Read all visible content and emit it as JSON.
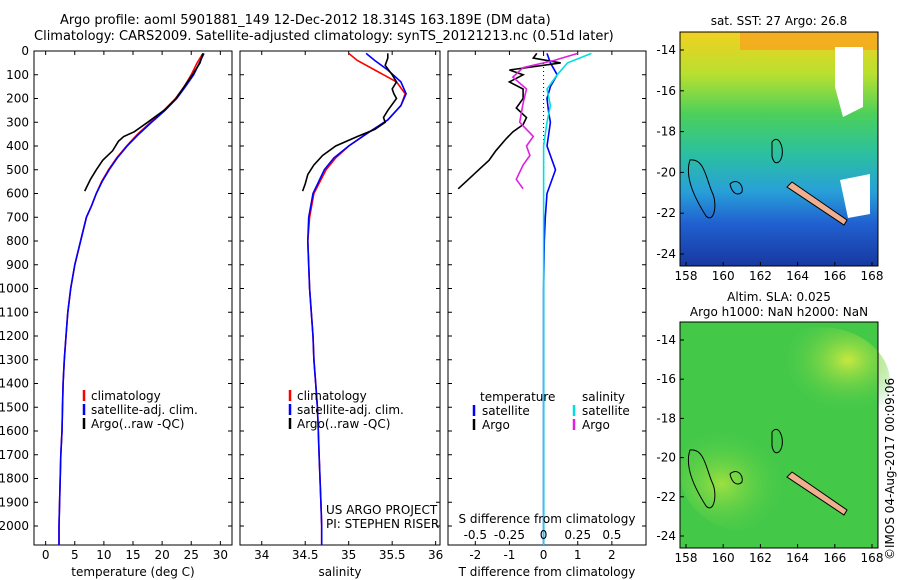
{
  "title_line1": "Argo profile: aoml 5901881_149 12-Dec-2012 18.314S 163.189E (DM data)",
  "title_line2": "Climatology: CARS2009. Satellite-adjusted climatology: synTS_20121213.nc (0.51d later)",
  "credit": "©IMOS 04-Aug-2017 00:09:06",
  "colors": {
    "climatology": "#ff0000",
    "satellite": "#0000ff",
    "argo": "#000000",
    "s_satellite": "#00e0e0",
    "s_argo": "#e020e0"
  },
  "chart_data": [
    {
      "type": "line",
      "xlabel": "temperature (deg C)",
      "xticks": [
        0,
        5,
        10,
        15,
        20,
        25,
        30
      ],
      "xlim": [
        -2,
        32
      ],
      "ylim": [
        0,
        2080
      ],
      "yticks": [
        0,
        100,
        200,
        300,
        400,
        500,
        600,
        700,
        800,
        900,
        1000,
        1100,
        1200,
        1300,
        1400,
        1500,
        1600,
        1700,
        1800,
        1900,
        2000
      ],
      "legend": [
        "climatology",
        "satellite-adj. clim.",
        "Argo(..raw -QC)"
      ],
      "series": [
        {
          "name": "climatology",
          "color": "climatology",
          "points": [
            [
              27,
              10
            ],
            [
              26,
              50
            ],
            [
              25,
              100
            ],
            [
              23.8,
              150
            ],
            [
              22.3,
              200
            ],
            [
              20.3,
              250
            ],
            [
              18,
              300
            ],
            [
              15.8,
              350
            ],
            [
              13.9,
              400
            ],
            [
              12.2,
              450
            ],
            [
              10.8,
              500
            ],
            [
              9.6,
              550
            ],
            [
              8.7,
              600
            ],
            [
              7.9,
              650
            ],
            [
              7,
              700
            ],
            [
              6,
              800
            ],
            [
              5,
              900
            ],
            [
              4.3,
              1000
            ],
            [
              3.8,
              1100
            ],
            [
              3.5,
              1200
            ],
            [
              3.2,
              1300
            ],
            [
              3,
              1400
            ],
            [
              2.9,
              1500
            ],
            [
              2.8,
              1600
            ],
            [
              2.6,
              1700
            ],
            [
              2.5,
              1800
            ],
            [
              2.4,
              1900
            ],
            [
              2.3,
              2000
            ],
            [
              2.3,
              2080
            ]
          ]
        },
        {
          "name": "satellite-adj. clim.",
          "color": "satellite",
          "points": [
            [
              27.2,
              10
            ],
            [
              26.4,
              50
            ],
            [
              25.4,
              100
            ],
            [
              24,
              150
            ],
            [
              22.5,
              200
            ],
            [
              20.5,
              250
            ],
            [
              18.2,
              300
            ],
            [
              16,
              350
            ],
            [
              14,
              400
            ],
            [
              12.3,
              450
            ],
            [
              10.9,
              500
            ],
            [
              9.7,
              550
            ],
            [
              8.7,
              600
            ],
            [
              7.9,
              650
            ],
            [
              7,
              700
            ],
            [
              6,
              800
            ],
            [
              5,
              900
            ],
            [
              4.3,
              1000
            ],
            [
              3.8,
              1100
            ],
            [
              3.5,
              1200
            ],
            [
              3.2,
              1300
            ],
            [
              3,
              1400
            ],
            [
              2.9,
              1500
            ],
            [
              2.8,
              1600
            ],
            [
              2.6,
              1700
            ],
            [
              2.5,
              1800
            ],
            [
              2.4,
              1900
            ],
            [
              2.3,
              2000
            ],
            [
              2.3,
              2080
            ]
          ]
        },
        {
          "name": "Argo(..raw -QC)",
          "color": "argo",
          "points": [
            [
              27,
              10
            ],
            [
              26.5,
              50
            ],
            [
              25.2,
              100
            ],
            [
              23.8,
              150
            ],
            [
              22.4,
              200
            ],
            [
              20.3,
              250
            ],
            [
              17.5,
              300
            ],
            [
              15.2,
              340
            ],
            [
              13.4,
              360
            ],
            [
              12.5,
              380
            ],
            [
              11.5,
              420
            ],
            [
              9.8,
              460
            ],
            [
              8.7,
              500
            ],
            [
              7.7,
              540
            ],
            [
              7.1,
              570
            ],
            [
              6.7,
              590
            ]
          ]
        }
      ]
    },
    {
      "type": "line",
      "xlabel": "salinity",
      "xticks": [
        34,
        34.5,
        35,
        35.5,
        36
      ],
      "xlim": [
        33.75,
        36.05
      ],
      "ylim": [
        0,
        2080
      ],
      "legend": [
        "climatology",
        "satellite-adj. clim.",
        "Argo(..raw -QC)"
      ],
      "annotation": [
        "US ARGO PROJECT",
        "PI: STEPHEN RISER"
      ],
      "series": [
        {
          "name": "climatology",
          "color": "climatology",
          "points": [
            [
              35,
              10
            ],
            [
              35.1,
              40
            ],
            [
              35.3,
              80
            ],
            [
              35.55,
              130
            ],
            [
              35.65,
              180
            ],
            [
              35.6,
              230
            ],
            [
              35.45,
              290
            ],
            [
              35.2,
              350
            ],
            [
              35,
              400
            ],
            [
              34.85,
              450
            ],
            [
              34.74,
              500
            ],
            [
              34.6,
              600
            ],
            [
              34.55,
              700
            ],
            [
              34.53,
              800
            ],
            [
              34.54,
              900
            ],
            [
              34.55,
              1000
            ],
            [
              34.57,
              1100
            ],
            [
              34.59,
              1200
            ],
            [
              34.6,
              1300
            ],
            [
              34.62,
              1400
            ],
            [
              34.64,
              1500
            ],
            [
              34.65,
              1600
            ],
            [
              34.66,
              1700
            ],
            [
              34.67,
              1800
            ],
            [
              34.68,
              1900
            ],
            [
              34.69,
              2000
            ],
            [
              34.69,
              2080
            ]
          ]
        },
        {
          "name": "satellite-adj. clim.",
          "color": "satellite",
          "points": [
            [
              35.2,
              10
            ],
            [
              35.3,
              40
            ],
            [
              35.45,
              80
            ],
            [
              35.6,
              130
            ],
            [
              35.66,
              180
            ],
            [
              35.6,
              230
            ],
            [
              35.45,
              290
            ],
            [
              35.2,
              350
            ],
            [
              35,
              400
            ],
            [
              34.83,
              450
            ],
            [
              34.72,
              500
            ],
            [
              34.59,
              600
            ],
            [
              34.54,
              700
            ],
            [
              34.53,
              800
            ],
            [
              34.54,
              900
            ],
            [
              34.55,
              1000
            ],
            [
              34.57,
              1100
            ],
            [
              34.59,
              1200
            ],
            [
              34.6,
              1300
            ],
            [
              34.62,
              1400
            ],
            [
              34.64,
              1500
            ],
            [
              34.65,
              1600
            ],
            [
              34.66,
              1700
            ],
            [
              34.67,
              1800
            ],
            [
              34.68,
              1900
            ],
            [
              34.69,
              2000
            ],
            [
              34.69,
              2080
            ]
          ]
        },
        {
          "name": "Argo(..raw -QC)",
          "color": "argo",
          "points": [
            [
              35.45,
              10
            ],
            [
              35.45,
              30
            ],
            [
              35.42,
              60
            ],
            [
              35.5,
              100
            ],
            [
              35.55,
              130
            ],
            [
              35.5,
              160
            ],
            [
              35.52,
              180
            ],
            [
              35.55,
              200
            ],
            [
              35.45,
              250
            ],
            [
              35.4,
              280
            ],
            [
              35.42,
              300
            ],
            [
              35.3,
              330
            ],
            [
              35.1,
              360
            ],
            [
              34.85,
              400
            ],
            [
              34.7,
              440
            ],
            [
              34.6,
              480
            ],
            [
              34.53,
              520
            ],
            [
              34.5,
              560
            ],
            [
              34.47,
              590
            ]
          ]
        }
      ]
    },
    {
      "type": "line",
      "xlabel": "T difference from climatology",
      "xlabel_top": "S difference from climatology",
      "xticks": [
        -2,
        -1,
        0,
        1,
        2
      ],
      "xticks_top": [
        "-0.5",
        "-0.25",
        "0",
        "0.25",
        "0.5"
      ],
      "xlim": [
        -2.8,
        3
      ],
      "ylim": [
        0,
        2080
      ],
      "legend_t": {
        "header": "temperature",
        "items": [
          "satellite",
          "Argo"
        ]
      },
      "legend_s": {
        "header": "salinity",
        "items": [
          "satellite",
          "Argo"
        ]
      },
      "series": [
        {
          "name": "satellite",
          "color": "satellite",
          "points": [
            [
              0.1,
              10
            ],
            [
              0.2,
              50
            ],
            [
              0.4,
              100
            ],
            [
              0.2,
              150
            ],
            [
              0.1,
              200
            ],
            [
              0.15,
              260
            ],
            [
              0.2,
              300
            ],
            [
              0.1,
              400
            ],
            [
              0.35,
              500
            ],
            [
              0.1,
              600
            ],
            [
              0.05,
              700
            ],
            [
              0.02,
              800
            ],
            [
              0,
              1000
            ],
            [
              0,
              2080
            ]
          ]
        },
        {
          "name": "Argo",
          "color": "argo",
          "points": [
            [
              -0.2,
              10
            ],
            [
              -0.3,
              30
            ],
            [
              0.5,
              50
            ],
            [
              -1,
              80
            ],
            [
              -0.6,
              100
            ],
            [
              -1,
              130
            ],
            [
              -0.6,
              160
            ],
            [
              -0.6,
              200
            ],
            [
              -0.8,
              240
            ],
            [
              -0.5,
              280
            ],
            [
              -0.6,
              310
            ],
            [
              -0.9,
              340
            ],
            [
              -1.1,
              370
            ],
            [
              -1.4,
              420
            ],
            [
              -1.6,
              460
            ],
            [
              -1.9,
              500
            ],
            [
              -2.2,
              540
            ],
            [
              -2.5,
              580
            ]
          ]
        },
        {
          "name": "salinity satellite",
          "color": "s_satellite",
          "points": [
            [
              1.4,
              10
            ],
            [
              0.7,
              50
            ],
            [
              0.4,
              100
            ],
            [
              0.1,
              160
            ],
            [
              0.2,
              230
            ],
            [
              0.1,
              300
            ],
            [
              0,
              400
            ],
            [
              0,
              600
            ],
            [
              0,
              800
            ],
            [
              0,
              1000
            ],
            [
              0,
              2080
            ]
          ]
        },
        {
          "name": "salinity Argo",
          "color": "s_argo",
          "points": [
            [
              1,
              10
            ],
            [
              0.3,
              40
            ],
            [
              -0.6,
              70
            ],
            [
              -0.9,
              110
            ],
            [
              -0.5,
              160
            ],
            [
              -0.6,
              220
            ],
            [
              -0.7,
              300
            ],
            [
              -0.3,
              360
            ],
            [
              -0.5,
              400
            ],
            [
              -0.4,
              440
            ],
            [
              -0.6,
              480
            ],
            [
              -0.8,
              540
            ],
            [
              -0.6,
              580
            ]
          ]
        }
      ]
    }
  ],
  "maps": [
    {
      "title": "sat. SST: 27 Argo: 26.8",
      "xticks": [
        "158",
        "160",
        "162",
        "164",
        "166",
        "168"
      ],
      "yticks": [
        "-14",
        "-16",
        "-18",
        "-20",
        "-22",
        "-24"
      ]
    },
    {
      "title_line1": "Altim. SLA: 0.025",
      "title_line2": "Argo h1000: NaN h2000: NaN",
      "xticks": [
        "158",
        "160",
        "162",
        "164",
        "166",
        "168"
      ],
      "yticks": [
        "-14",
        "-16",
        "-18",
        "-20",
        "-22",
        "-24"
      ]
    }
  ]
}
